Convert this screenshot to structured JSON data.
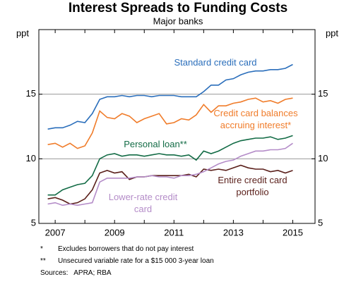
{
  "chart_data": {
    "type": "line",
    "title": "Interest Spreads to Funding Costs",
    "subtitle": "Major banks",
    "y_label": "ppt",
    "y2_label": "ppt",
    "x": [
      2006.75,
      2007,
      2007.25,
      2007.5,
      2007.75,
      2008,
      2008.25,
      2008.5,
      2008.75,
      2009,
      2009.25,
      2009.5,
      2009.75,
      2010,
      2010.25,
      2010.5,
      2010.75,
      2011,
      2011.25,
      2011.5,
      2011.75,
      2012,
      2012.25,
      2012.5,
      2012.75,
      2013,
      2013.25,
      2013.5,
      2013.75,
      2014,
      2014.25,
      2014.5,
      2014.75,
      2015
    ],
    "xlim": [
      2006.45,
      2015.75
    ],
    "xticks": [
      2007,
      2009,
      2011,
      2013,
      2015
    ],
    "xminorticks": [
      2008,
      2010,
      2012,
      2014
    ],
    "ylim": [
      5,
      20
    ],
    "yticks": [
      5,
      10,
      15
    ],
    "grid": true,
    "series": [
      {
        "name": "Standard credit card",
        "color": "#2a6ebb",
        "values": [
          12.3,
          12.4,
          12.4,
          12.6,
          12.9,
          12.8,
          13.5,
          14.6,
          14.8,
          14.8,
          14.9,
          14.8,
          14.9,
          14.9,
          14.8,
          14.9,
          14.9,
          14.9,
          14.8,
          14.8,
          14.8,
          15.2,
          15.7,
          15.7,
          16.1,
          16.2,
          16.5,
          16.7,
          16.8,
          16.8,
          16.9,
          16.9,
          17.0,
          17.3
        ]
      },
      {
        "name": "Credit card balances accruing interest*",
        "color": "#f07c2a",
        "values": [
          11.1,
          11.2,
          10.9,
          11.2,
          10.8,
          11.0,
          12.0,
          13.7,
          13.2,
          13.1,
          13.5,
          13.3,
          12.8,
          13.1,
          13.3,
          13.5,
          12.7,
          12.8,
          13.1,
          13.0,
          13.4,
          14.2,
          13.6,
          14.1,
          14.1,
          14.3,
          14.4,
          14.6,
          14.7,
          14.4,
          14.5,
          14.3,
          14.6,
          14.7
        ]
      },
      {
        "name": "Personal loan**",
        "color": "#126b45",
        "values": [
          7.2,
          7.2,
          7.6,
          7.8,
          8.0,
          8.1,
          8.7,
          10.0,
          10.3,
          10.4,
          10.2,
          10.3,
          10.3,
          10.2,
          10.3,
          10.4,
          10.3,
          10.3,
          10.2,
          10.3,
          9.9,
          10.6,
          10.4,
          10.6,
          10.9,
          11.2,
          11.4,
          11.5,
          11.6,
          11.6,
          11.7,
          11.5,
          11.6,
          11.8
        ]
      },
      {
        "name": "Entire credit card portfolio",
        "color": "#5a1f1a",
        "values": [
          6.9,
          7.0,
          6.8,
          6.5,
          6.6,
          6.9,
          7.6,
          8.9,
          9.1,
          8.9,
          9.0,
          8.4,
          8.6,
          8.6,
          8.7,
          8.7,
          8.7,
          8.7,
          8.7,
          8.8,
          8.6,
          9.2,
          9.1,
          9.2,
          9.1,
          9.3,
          9.5,
          9.3,
          9.2,
          9.2,
          9.0,
          9.1,
          8.9,
          9.1
        ]
      },
      {
        "name": "Lower-rate credit card",
        "color": "#b48cc8",
        "values": [
          6.5,
          6.6,
          6.4,
          6.5,
          6.4,
          6.5,
          6.6,
          8.2,
          8.5,
          8.5,
          8.5,
          8.5,
          8.6,
          8.6,
          8.7,
          8.6,
          8.6,
          8.5,
          8.7,
          8.7,
          8.8,
          9.0,
          9.3,
          9.6,
          9.8,
          9.9,
          10.2,
          10.4,
          10.6,
          10.6,
          10.7,
          10.7,
          10.8,
          11.2
        ]
      }
    ],
    "notes": [
      {
        "marker": "*",
        "text": "Excludes borrowers that do not pay interest"
      },
      {
        "marker": "**",
        "text": "Unsecured variable rate for a $15 000 3-year loan"
      }
    ],
    "sources": "Sources:   APRA; RBA"
  }
}
